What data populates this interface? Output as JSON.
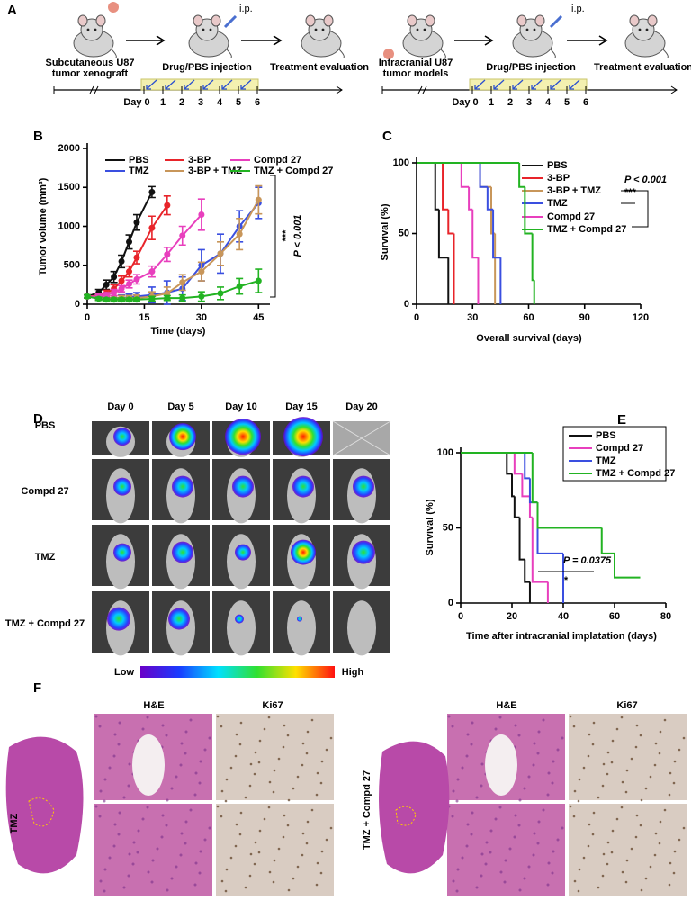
{
  "panel_a": {
    "label": "A",
    "left": {
      "ip": "i.p.",
      "model": [
        "Subcutaneous U87",
        "tumor xenograft"
      ],
      "injection": "Drug/PBS injection",
      "evaluation": "Treatment evaluation",
      "timeline": [
        "Day 0",
        "1",
        "2",
        "3",
        "4",
        "5",
        "6"
      ]
    },
    "right": {
      "ip": "i.p.",
      "model": [
        "Intracranial U87",
        "tumor models"
      ],
      "injection": "Drug/PBS injection",
      "evaluation": "Treatment evaluation",
      "timeline": [
        "Day 0",
        "1",
        "2",
        "3",
        "4",
        "5",
        "6"
      ]
    }
  },
  "chart_data": [
    {
      "type": "line",
      "panel_label": "B",
      "x_label": "Time (days)",
      "y_label": "Tumor volume (mm³)",
      "xlim": [
        0,
        48
      ],
      "xticks": [
        0,
        15,
        30,
        45
      ],
      "ylim": [
        0,
        2000
      ],
      "yticks": [
        0,
        500,
        1000,
        1500,
        2000
      ],
      "series": [
        {
          "name": "PBS",
          "color": "#111111",
          "x": [
            0,
            3,
            5,
            7,
            9,
            11,
            13,
            17
          ],
          "values": [
            100,
            150,
            250,
            350,
            550,
            800,
            1050,
            1440
          ],
          "errors": [
            20,
            40,
            60,
            70,
            80,
            90,
            100,
            70
          ]
        },
        {
          "name": "TMZ",
          "color": "#3a4fe0",
          "x": [
            0,
            3,
            5,
            7,
            9,
            11,
            13,
            17,
            21,
            25,
            30,
            35,
            40,
            45
          ],
          "values": [
            100,
            90,
            80,
            80,
            80,
            90,
            100,
            120,
            150,
            200,
            500,
            650,
            1000,
            1300
          ],
          "errors": [
            20,
            30,
            30,
            30,
            40,
            40,
            50,
            100,
            150,
            150,
            200,
            250,
            200,
            200
          ]
        },
        {
          "name": "3-BP",
          "color": "#e8242a",
          "x": [
            0,
            3,
            5,
            7,
            9,
            11,
            13,
            17,
            21
          ],
          "values": [
            100,
            110,
            140,
            200,
            300,
            420,
            600,
            980,
            1270
          ],
          "errors": [
            20,
            30,
            40,
            50,
            60,
            70,
            80,
            150,
            120
          ]
        },
        {
          "name": "3-BP + TMZ",
          "color": "#c8965a",
          "x": [
            0,
            3,
            5,
            7,
            9,
            11,
            13,
            17,
            21,
            25,
            30,
            35,
            40,
            45
          ],
          "values": [
            100,
            80,
            80,
            80,
            80,
            80,
            80,
            100,
            140,
            280,
            420,
            650,
            900,
            1340
          ],
          "errors": [
            20,
            30,
            30,
            30,
            30,
            30,
            40,
            60,
            80,
            100,
            120,
            150,
            200,
            180
          ]
        },
        {
          "name": "Compd 27",
          "color": "#e83fbd",
          "x": [
            0,
            3,
            5,
            7,
            9,
            11,
            13,
            17,
            21,
            25,
            30
          ],
          "values": [
            100,
            100,
            120,
            150,
            200,
            260,
            320,
            420,
            640,
            880,
            1150
          ],
          "errors": [
            20,
            30,
            30,
            40,
            40,
            50,
            60,
            70,
            90,
            120,
            200
          ]
        },
        {
          "name": "TMZ + Compd 27",
          "color": "#22b322",
          "x": [
            0,
            3,
            5,
            7,
            9,
            11,
            13,
            17,
            21,
            25,
            30,
            35,
            40,
            45
          ],
          "values": [
            100,
            70,
            60,
            60,
            60,
            60,
            60,
            70,
            80,
            80,
            100,
            140,
            230,
            300
          ],
          "errors": [
            20,
            20,
            20,
            20,
            20,
            20,
            20,
            30,
            30,
            40,
            60,
            80,
            100,
            150
          ]
        }
      ],
      "annotations": [
        "***",
        "P < 0.001"
      ]
    },
    {
      "type": "step",
      "panel_label": "C",
      "x_label": "Overall survival (days)",
      "y_label": "Survival (%)",
      "xlim": [
        0,
        120
      ],
      "xticks": [
        0,
        30,
        60,
        90,
        120
      ],
      "ylim": [
        0,
        100
      ],
      "yticks": [
        0,
        50,
        100
      ],
      "series": [
        {
          "name": "PBS",
          "color": "#111111",
          "x": [
            0,
            10,
            12,
            17
          ],
          "values": [
            100,
            67,
            33,
            0
          ]
        },
        {
          "name": "3-BP",
          "color": "#e8242a",
          "x": [
            0,
            14,
            17,
            20
          ],
          "values": [
            100,
            67,
            50,
            0
          ]
        },
        {
          "name": "3-BP + TMZ",
          "color": "#c8965a",
          "x": [
            0,
            34,
            40,
            42
          ],
          "values": [
            100,
            83,
            50,
            0
          ]
        },
        {
          "name": "TMZ",
          "color": "#3a4fe0",
          "x": [
            0,
            34,
            38,
            41,
            45
          ],
          "values": [
            100,
            83,
            67,
            33,
            0
          ]
        },
        {
          "name": "Compd 27",
          "color": "#e83fbd",
          "x": [
            0,
            24,
            28,
            30,
            33
          ],
          "values": [
            100,
            83,
            67,
            33,
            0
          ]
        },
        {
          "name": "TMZ + Compd 27",
          "color": "#22b322",
          "x": [
            0,
            55,
            58,
            62,
            63
          ],
          "values": [
            100,
            83,
            50,
            17,
            0
          ]
        }
      ],
      "annotations": [
        "P < 0.001",
        "***"
      ]
    },
    {
      "type": "step",
      "panel_label": "E",
      "x_label": "Time after intracranial implatation (days)",
      "y_label": "Survival (%)",
      "xlim": [
        0,
        80
      ],
      "xticks": [
        0,
        20,
        40,
        60,
        80
      ],
      "ylim": [
        0,
        100
      ],
      "yticks": [
        0,
        50,
        100
      ],
      "series": [
        {
          "name": "PBS",
          "color": "#111111",
          "x": [
            0,
            18,
            20,
            21,
            23,
            25,
            27
          ],
          "values": [
            100,
            86,
            71,
            57,
            29,
            14,
            0
          ]
        },
        {
          "name": "Compd 27",
          "color": "#e83fbd",
          "x": [
            0,
            21,
            24,
            27,
            28,
            34
          ],
          "values": [
            100,
            86,
            71,
            57,
            14,
            0
          ]
        },
        {
          "name": "TMZ",
          "color": "#3a4fe0",
          "x": [
            0,
            25,
            27,
            30,
            40
          ],
          "values": [
            100,
            83,
            67,
            33,
            0
          ]
        },
        {
          "name": "TMZ + Compd 27",
          "color": "#22b322",
          "x": [
            0,
            28,
            30,
            55,
            60,
            70
          ],
          "values": [
            100,
            67,
            50,
            33,
            17,
            17
          ]
        }
      ],
      "annotations": [
        "P = 0.0375",
        "*"
      ]
    }
  ],
  "panel_d": {
    "label": "D",
    "columns": [
      "Day 0",
      "Day 5",
      "Day 10",
      "Day 15",
      "Day 20"
    ],
    "rows": [
      "PBS",
      "Compd 27",
      "TMZ",
      "TMZ + Compd 27"
    ],
    "colorbar": {
      "low": "Low",
      "high": "High"
    }
  },
  "panel_f": {
    "label": "F",
    "left": {
      "group": "TMZ",
      "stains": [
        "H&E",
        "Ki67"
      ]
    },
    "right": {
      "group": "TMZ + Compd 27",
      "stains": [
        "H&E",
        "Ki67"
      ]
    }
  }
}
